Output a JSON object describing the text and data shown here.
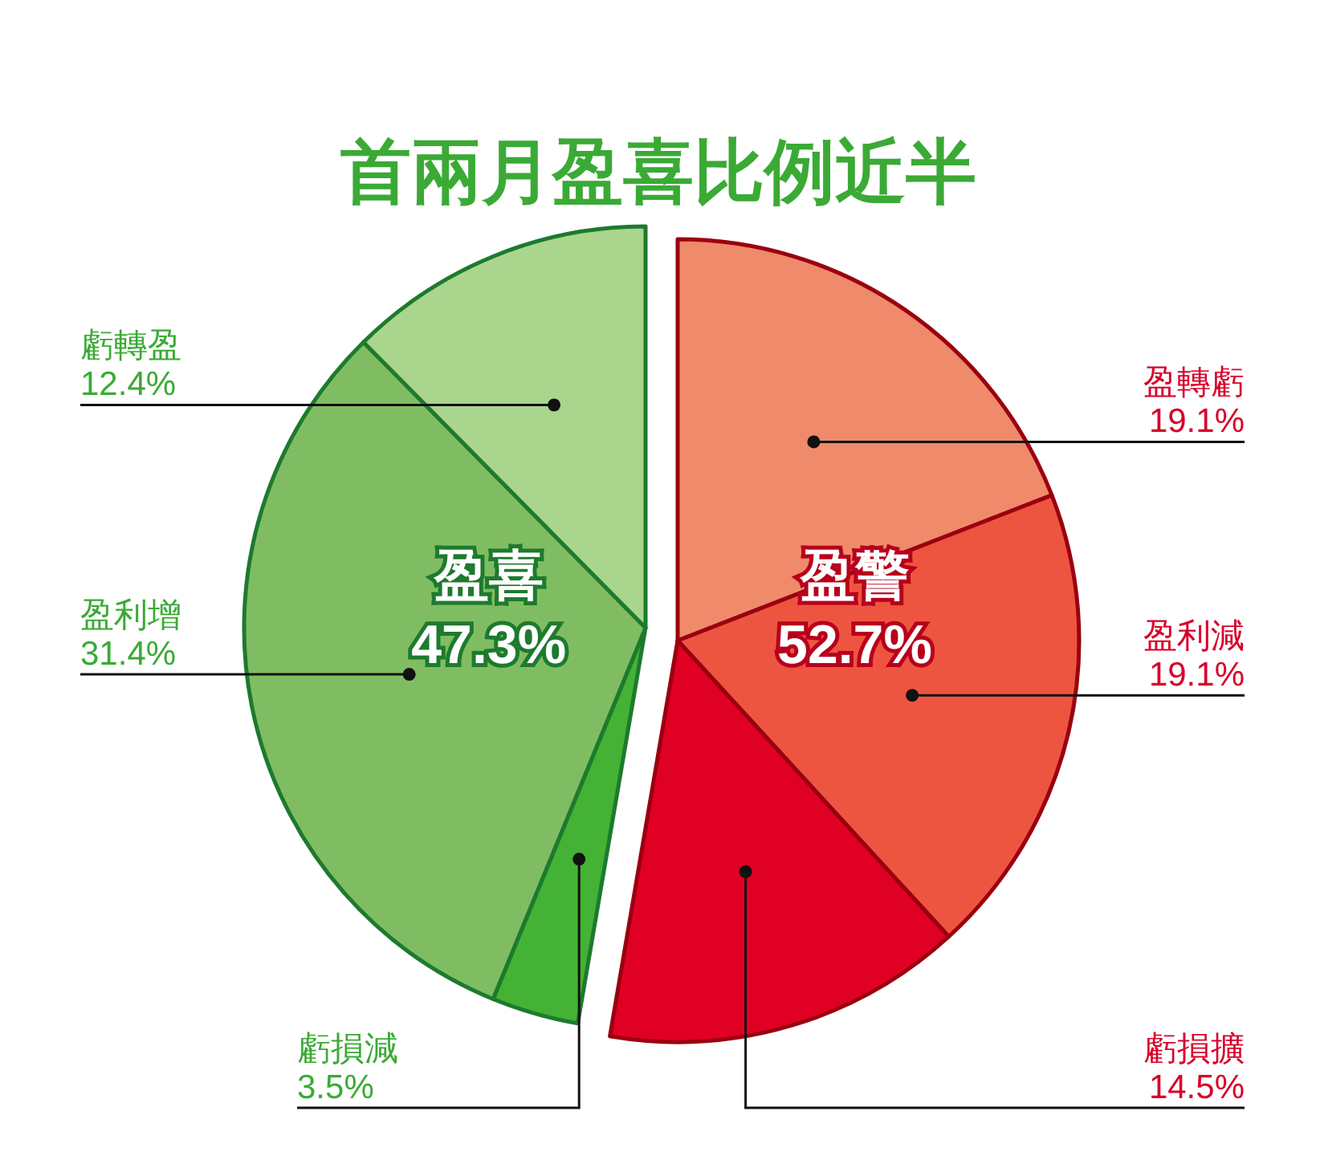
{
  "chart_data": {
    "type": "pie",
    "title": "首兩月盈喜比例近半",
    "categories": [
      "盈轉虧",
      "盈利減",
      "虧損擴",
      "虧損減",
      "盈利增",
      "虧轉盈"
    ],
    "values": [
      19.1,
      19.1,
      14.5,
      3.5,
      31.4,
      12.4
    ],
    "colors": [
      "#ef8a6a",
      "#ee5540",
      "#e00024",
      "#44b234",
      "#80bd62",
      "#a9d68c"
    ],
    "value_labels": [
      "19.1%",
      "19.1%",
      "14.5%",
      "3.5%",
      "31.4%",
      "12.4%"
    ],
    "annotations": [
      "盈警",
      "52.7%",
      "盈喜",
      "47.3%"
    ]
  }
}
